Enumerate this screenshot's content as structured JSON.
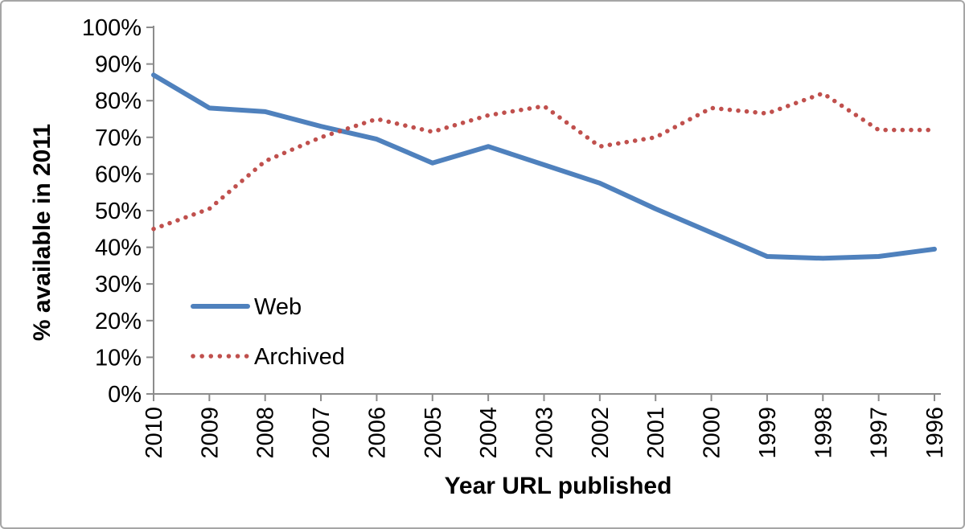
{
  "frame": {
    "background": "#ffffff",
    "border_color": "#a6a6a6",
    "axis_color": "#8c8c8c"
  },
  "chart_data": {
    "type": "line",
    "title": "",
    "xlabel": "Year URL published",
    "ylabel": "% available in 2011",
    "categories": [
      "2010",
      "2009",
      "2008",
      "2007",
      "2006",
      "2005",
      "2004",
      "2003",
      "2002",
      "2001",
      "2000",
      "1999",
      "1998",
      "1997",
      "1996"
    ],
    "x_axis_direction": "newest year (2010) at left, oldest (1996) at right",
    "y_ticks": [
      "0%",
      "10%",
      "20%",
      "30%",
      "40%",
      "50%",
      "60%",
      "70%",
      "80%",
      "90%",
      "100%"
    ],
    "ylim": [
      0,
      100
    ],
    "grid": "off",
    "legend_position": "inside top-left of plot, lower-left area",
    "series": [
      {
        "name": "Web",
        "color": "#4F81BD",
        "style": "solid",
        "values": [
          87,
          78,
          77,
          73,
          69.5,
          63,
          67.5,
          62.5,
          57.5,
          50.5,
          44,
          37.5,
          37,
          37.5,
          39.5
        ]
      },
      {
        "name": "Archived",
        "color": "#C0504D",
        "style": "dotted",
        "values": [
          45,
          50.5,
          63.5,
          70,
          75,
          71.5,
          76,
          78.5,
          67.5,
          70,
          78,
          76.5,
          82,
          72,
          72
        ]
      }
    ]
  }
}
